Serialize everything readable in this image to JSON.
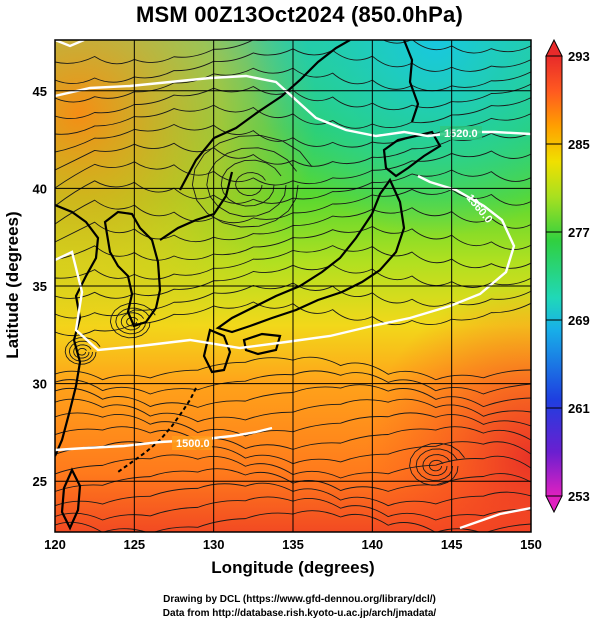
{
  "title": "MSM 00Z13Oct2024 (850.0hPa)",
  "xlabel": "Longitude (degrees)",
  "ylabel": "Latitude  (degrees)",
  "credits": {
    "line1": "Drawing by DCL (https://www.gfd-dennou.org/library/dcl/)",
    "line2": "Data from http://database.rish.kyoto-u.ac.jp/arch/jmadata/"
  },
  "chart_data": {
    "type": "heatmap",
    "x_range": [
      120,
      150
    ],
    "y_range": [
      22.4,
      47.6
    ],
    "x_ticks": [
      "120",
      "125",
      "130",
      "135",
      "140",
      "145",
      "150"
    ],
    "y_ticks": [
      "25",
      "30",
      "35",
      "40",
      "45"
    ],
    "colorbar": {
      "min": 253,
      "max": 293,
      "ticks": [
        "293",
        "285",
        "277",
        "269",
        "261",
        "253"
      ],
      "colors": [
        "#e020c0",
        "#6a1fd0",
        "#1e3fe0",
        "#18b0e8",
        "#20d8b8",
        "#30d040",
        "#a8e020",
        "#f0e000",
        "#ffa000",
        "#ff5a20",
        "#e82a2a"
      ]
    },
    "contour_labels": [
      "1520.0",
      "1560.0",
      "1500.0"
    ],
    "grid": true,
    "overlays": [
      "streamlines",
      "coastlines",
      "geopotential height contours (white)"
    ]
  }
}
